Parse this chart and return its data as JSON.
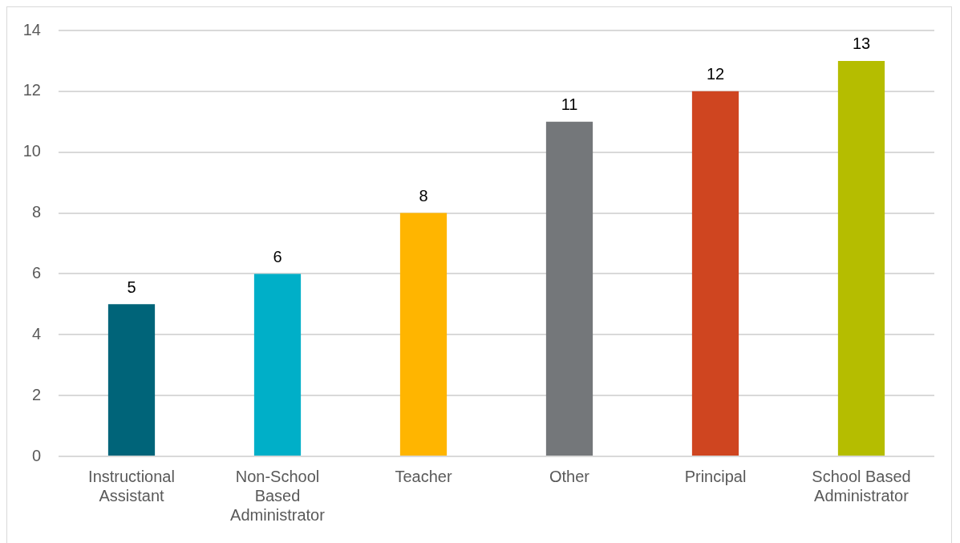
{
  "chart_data": {
    "type": "bar",
    "categories": [
      "Instructional Assistant",
      "Non-School Based Administrator",
      "Teacher",
      "Other",
      "Principal",
      "School Based Administrator"
    ],
    "values": [
      5,
      6,
      8,
      11,
      12,
      13
    ],
    "colors": [
      "#006479",
      "#00afc8",
      "#ffb500",
      "#74777a",
      "#cf4520",
      "#b5bd00"
    ],
    "ylim": [
      0,
      14
    ],
    "yticks": [
      0,
      2,
      4,
      6,
      8,
      10,
      12,
      14
    ],
    "grid": "y",
    "data_labels": true
  }
}
